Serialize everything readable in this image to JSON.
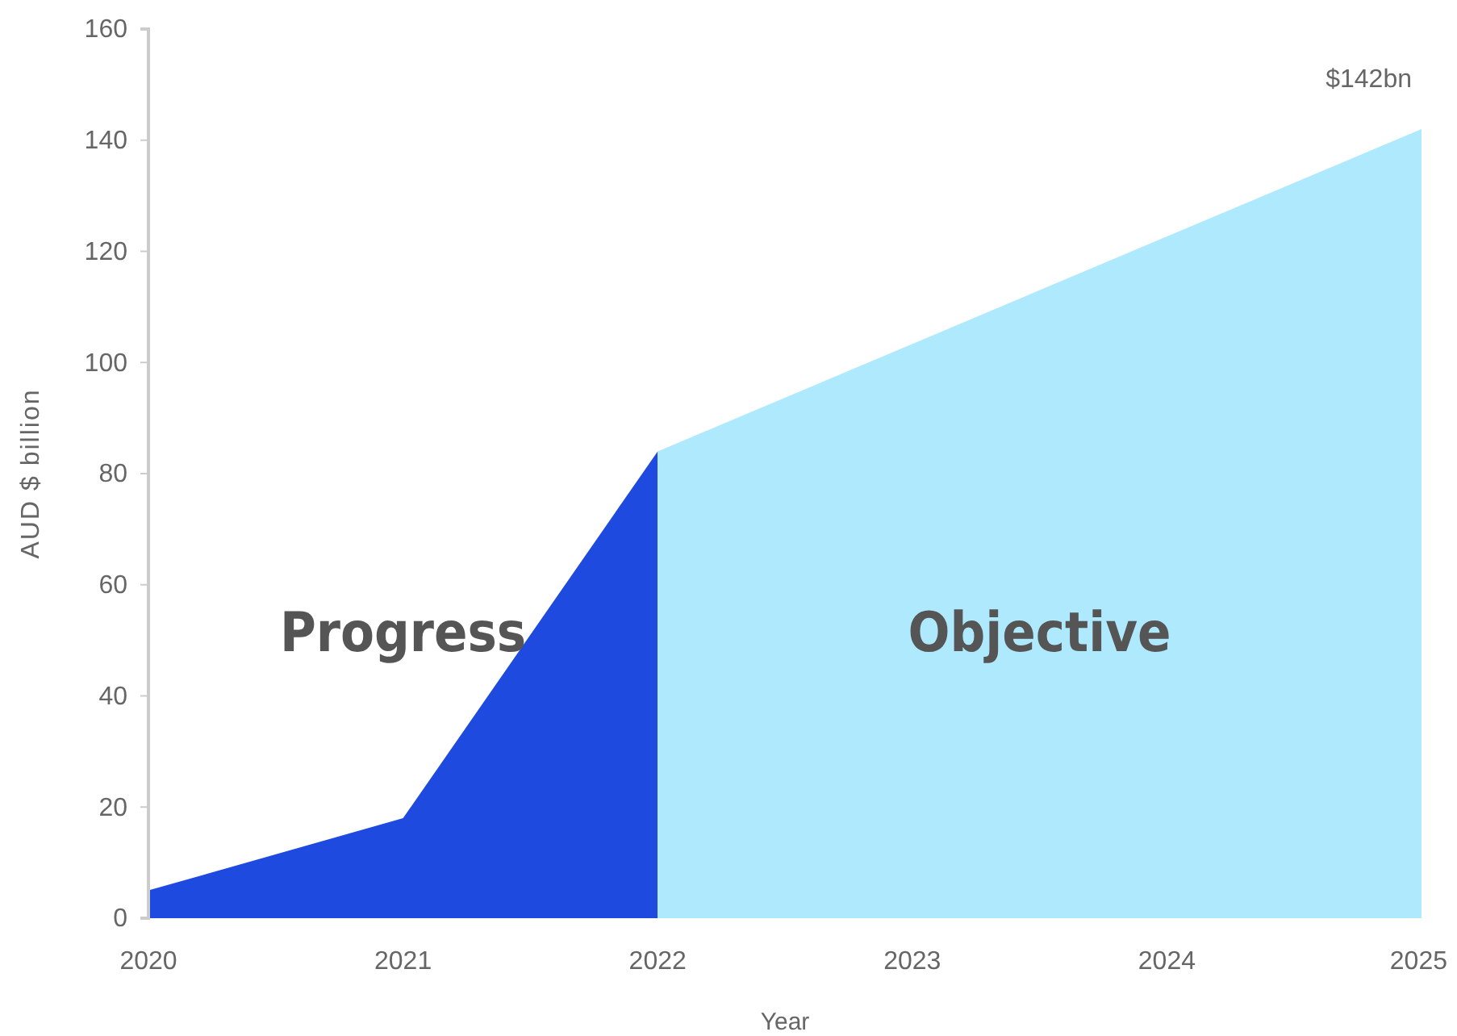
{
  "chart_data": {
    "type": "area",
    "xlabel": "Year",
    "ylabel": "AUD $ billion",
    "xlim": [
      2020,
      2025
    ],
    "xticks": [
      2020,
      2021,
      2022,
      2023,
      2024,
      2025
    ],
    "ylim": [
      0,
      160
    ],
    "yticks": [
      0,
      20,
      40,
      60,
      80,
      100,
      120,
      140,
      160
    ],
    "series": [
      {
        "name": "Progress",
        "color": "#1f4ae0",
        "x": [
          2020,
          2021,
          2022
        ],
        "values": [
          5,
          18,
          84
        ]
      },
      {
        "name": "Objective",
        "color": "#aee9fd",
        "x": [
          2022,
          2025
        ],
        "values": [
          84,
          142
        ]
      }
    ],
    "annotations": [
      {
        "text": "$142bn",
        "x": 2025,
        "y": 142
      }
    ]
  }
}
